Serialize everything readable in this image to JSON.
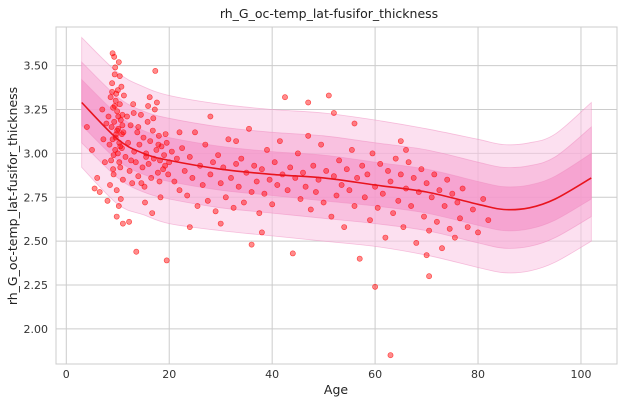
{
  "chart_data": {
    "type": "scatter",
    "title": "rh_G_oc-temp_lat-fusifor_thickness",
    "xlabel": "Age",
    "ylabel": "rh_G_oc-temp_lat-fusifor_thickness",
    "xlim": [
      -2,
      107
    ],
    "ylim": [
      1.8,
      3.72
    ],
    "x_ticks": [
      0,
      20,
      40,
      60,
      80,
      100
    ],
    "y_ticks": [
      2.0,
      2.25,
      2.5,
      2.75,
      3.0,
      3.25,
      3.5
    ],
    "x_tick_labels": [
      "0",
      "20",
      "40",
      "60",
      "80",
      "100"
    ],
    "y_tick_labels": [
      "2.00",
      "2.25",
      "2.50",
      "2.75",
      "3.00",
      "3.25",
      "3.50"
    ],
    "grid": true,
    "colors": {
      "points": "#ff0000",
      "trend": "#e8141e",
      "bands": [
        "#f9c6e3",
        "#f6a8d3",
        "#f48cc5"
      ],
      "grid": "#cccccc",
      "frame": "#cccccc"
    },
    "trend": {
      "x": [
        3,
        10,
        15,
        20,
        30,
        40,
        50,
        60,
        70,
        80,
        85,
        90,
        95,
        102
      ],
      "y": [
        3.29,
        3.08,
        3.0,
        2.96,
        2.91,
        2.88,
        2.86,
        2.82,
        2.78,
        2.71,
        2.68,
        2.69,
        2.74,
        2.86
      ]
    },
    "bands": [
      {
        "quantiles": [
          5,
          95
        ],
        "lower": [
          2.92,
          2.71,
          2.65,
          2.6,
          2.56,
          2.53,
          2.5,
          2.47,
          2.42,
          2.35,
          2.32,
          2.33,
          2.38,
          2.5
        ],
        "upper": [
          3.66,
          3.46,
          3.38,
          3.33,
          3.28,
          3.25,
          3.23,
          3.19,
          3.14,
          3.08,
          3.05,
          3.06,
          3.11,
          3.29
        ]
      },
      {
        "quantiles": [
          15,
          85
        ],
        "lower": [
          3.06,
          2.86,
          2.78,
          2.74,
          2.69,
          2.66,
          2.63,
          2.6,
          2.56,
          2.49,
          2.46,
          2.47,
          2.52,
          2.64
        ],
        "upper": [
          3.52,
          3.32,
          3.24,
          3.2,
          3.15,
          3.12,
          3.1,
          3.06,
          3.02,
          2.95,
          2.92,
          2.93,
          2.98,
          3.15
        ]
      },
      {
        "quantiles": [
          25,
          75
        ],
        "lower": [
          3.16,
          2.96,
          2.88,
          2.84,
          2.79,
          2.76,
          2.73,
          2.7,
          2.66,
          2.59,
          2.56,
          2.57,
          2.62,
          2.74
        ],
        "upper": [
          3.42,
          3.22,
          3.13,
          3.09,
          3.04,
          3.01,
          2.99,
          2.95,
          2.91,
          2.84,
          2.81,
          2.82,
          2.87,
          3.0
        ]
      }
    ],
    "points": [
      [
        8.2,
        3.21
      ],
      [
        8.4,
        3.05
      ],
      [
        8.6,
        3.32
      ],
      [
        8.7,
        2.96
      ],
      [
        8.8,
        3.15
      ],
      [
        8.9,
        3.4
      ],
      [
        9.0,
        3.08
      ],
      [
        9.1,
        3.26
      ],
      [
        9.2,
        2.88
      ],
      [
        9.3,
        3.18
      ],
      [
        9.4,
        3.45
      ],
      [
        9.5,
        3.02
      ],
      [
        9.6,
        3.3
      ],
      [
        9.7,
        3.11
      ],
      [
        9.8,
        2.79
      ],
      [
        9.9,
        3.24
      ],
      [
        10.0,
        3.36
      ],
      [
        10.0,
        3.0
      ],
      [
        10.1,
        3.14
      ],
      [
        10.2,
        3.52
      ],
      [
        10.3,
        3.06
      ],
      [
        10.4,
        3.28
      ],
      [
        10.5,
        2.92
      ],
      [
        10.6,
        3.19
      ],
      [
        10.7,
        3.38
      ],
      [
        10.8,
        3.03
      ],
      [
        10.9,
        3.22
      ],
      [
        11.0,
        2.85
      ],
      [
        11.1,
        3.12
      ],
      [
        11.2,
        3.33
      ],
      [
        9.0,
        3.57
      ],
      [
        9.5,
        3.49
      ],
      [
        10.2,
        2.7
      ],
      [
        9.8,
        2.64
      ],
      [
        10.6,
        2.74
      ],
      [
        8.5,
        2.82
      ],
      [
        9.3,
        3.55
      ],
      [
        10.4,
        3.44
      ],
      [
        8.9,
        3.35
      ],
      [
        9.9,
        3.13
      ],
      [
        7.2,
        3.08
      ],
      [
        7.5,
        2.95
      ],
      [
        7.8,
        3.17
      ],
      [
        6.0,
        2.86
      ],
      [
        5.0,
        3.02
      ],
      [
        4.0,
        3.15
      ],
      [
        6.5,
        2.78
      ],
      [
        7.0,
        3.25
      ],
      [
        5.5,
        2.8
      ],
      [
        8.0,
        2.73
      ],
      [
        11.5,
        2.98
      ],
      [
        11.8,
        3.21
      ],
      [
        12.0,
        3.06
      ],
      [
        12.3,
        2.9
      ],
      [
        12.5,
        3.16
      ],
      [
        12.8,
        2.83
      ],
      [
        13.0,
        3.28
      ],
      [
        13.2,
        3.01
      ],
      [
        13.5,
        2.95
      ],
      [
        13.8,
        3.12
      ],
      [
        14.0,
        2.87
      ],
      [
        14.2,
        3.05
      ],
      [
        14.5,
        3.22
      ],
      [
        14.8,
        2.92
      ],
      [
        15.0,
        3.09
      ],
      [
        15.2,
        2.81
      ],
      [
        15.5,
        3.0
      ],
      [
        15.8,
        3.18
      ],
      [
        16.0,
        2.94
      ],
      [
        16.3,
        3.07
      ],
      [
        16.5,
        2.86
      ],
      [
        16.8,
        3.13
      ],
      [
        17.0,
        2.97
      ],
      [
        17.2,
        3.25
      ],
      [
        17.5,
        3.02
      ],
      [
        17.8,
        2.89
      ],
      [
        18.0,
        3.1
      ],
      [
        18.2,
        2.96
      ],
      [
        18.5,
        3.04
      ],
      [
        18.8,
        2.91
      ],
      [
        17.3,
        3.47
      ],
      [
        16.2,
        3.32
      ],
      [
        17.6,
        3.29
      ],
      [
        15.3,
        2.72
      ],
      [
        16.7,
        2.66
      ],
      [
        18.3,
        2.75
      ],
      [
        13.6,
        2.44
      ],
      [
        19.5,
        2.39
      ],
      [
        12.2,
        2.61
      ],
      [
        11.0,
        2.6
      ],
      [
        19.0,
        2.99
      ],
      [
        19.2,
        2.93
      ],
      [
        19.5,
        3.06
      ],
      [
        19.8,
        2.88
      ],
      [
        20.0,
        2.95
      ],
      [
        20.5,
        3.01
      ],
      [
        21.0,
        2.84
      ],
      [
        21.5,
        2.97
      ],
      [
        22.0,
        2.79
      ],
      [
        22.5,
        3.03
      ],
      [
        23.0,
        2.9
      ],
      [
        23.5,
        2.76
      ],
      [
        24.0,
        2.98
      ],
      [
        24.5,
        2.86
      ],
      [
        25.0,
        3.12
      ],
      [
        25.5,
        2.7
      ],
      [
        26.0,
        2.93
      ],
      [
        26.5,
        2.82
      ],
      [
        27.0,
        3.05
      ],
      [
        27.5,
        2.73
      ],
      [
        28.0,
        2.88
      ],
      [
        28.5,
        2.95
      ],
      [
        29.0,
        2.67
      ],
      [
        29.5,
        2.99
      ],
      [
        30.0,
        2.83
      ],
      [
        30.5,
        2.92
      ],
      [
        31.0,
        2.75
      ],
      [
        31.5,
        3.08
      ],
      [
        32.0,
        2.86
      ],
      [
        32.5,
        2.69
      ],
      [
        33.0,
        2.94
      ],
      [
        33.5,
        2.81
      ],
      [
        34.0,
        2.97
      ],
      [
        34.5,
        2.72
      ],
      [
        35.0,
        2.89
      ],
      [
        35.5,
        3.14
      ],
      [
        36.0,
        2.78
      ],
      [
        36.5,
        2.93
      ],
      [
        37.0,
        2.84
      ],
      [
        37.5,
        2.66
      ],
      [
        38.0,
        2.91
      ],
      [
        38.5,
        2.77
      ],
      [
        39.0,
        3.02
      ],
      [
        39.5,
        2.85
      ],
      [
        40.0,
        2.71
      ],
      [
        40.5,
        2.95
      ],
      [
        41.0,
        2.82
      ],
      [
        41.5,
        3.07
      ],
      [
        42.0,
        2.88
      ],
      [
        42.5,
        3.32
      ],
      [
        43.0,
        2.79
      ],
      [
        43.5,
        2.92
      ],
      [
        44.0,
        2.43
      ],
      [
        44.5,
        2.86
      ],
      [
        45.0,
        3.0
      ],
      [
        45.5,
        2.74
      ],
      [
        46.0,
        2.89
      ],
      [
        46.5,
        2.81
      ],
      [
        47.0,
        3.1
      ],
      [
        47.5,
        2.68
      ],
      [
        48.0,
        2.93
      ],
      [
        48.5,
        2.78
      ],
      [
        49.0,
        2.85
      ],
      [
        49.5,
        3.05
      ],
      [
        50.0,
        2.72
      ],
      [
        50.5,
        2.9
      ],
      [
        51.0,
        3.33
      ],
      [
        51.5,
        2.64
      ],
      [
        52.0,
        2.87
      ],
      [
        52.5,
        2.76
      ],
      [
        53.0,
        2.96
      ],
      [
        53.5,
        2.82
      ],
      [
        54.0,
        2.58
      ],
      [
        54.5,
        2.91
      ],
      [
        55.0,
        2.79
      ],
      [
        55.5,
        3.02
      ],
      [
        56.0,
        2.7
      ],
      [
        56.5,
        2.86
      ],
      [
        57.0,
        2.4
      ],
      [
        57.5,
        2.93
      ],
      [
        58.0,
        2.75
      ],
      [
        58.5,
        2.88
      ],
      [
        59.0,
        2.62
      ],
      [
        59.5,
        3.0
      ],
      [
        60.0,
        2.81
      ],
      [
        60.5,
        2.69
      ],
      [
        61.0,
        2.94
      ],
      [
        61.5,
        2.77
      ],
      [
        62.0,
        2.52
      ],
      [
        62.5,
        2.9
      ],
      [
        63.0,
        2.84
      ],
      [
        63.5,
        2.66
      ],
      [
        64.0,
        2.97
      ],
      [
        64.5,
        2.73
      ],
      [
        65.0,
        2.88
      ],
      [
        65.5,
        2.58
      ],
      [
        66.0,
        2.8
      ],
      [
        66.5,
        2.95
      ],
      [
        67.0,
        2.7
      ],
      [
        67.5,
        2.86
      ],
      [
        68.0,
        2.49
      ],
      [
        68.5,
        2.78
      ],
      [
        69.0,
        2.91
      ],
      [
        69.5,
        2.64
      ],
      [
        70.0,
        2.83
      ],
      [
        70.5,
        2.56
      ],
      [
        71.0,
        2.75
      ],
      [
        71.5,
        2.88
      ],
      [
        72.0,
        2.61
      ],
      [
        72.5,
        2.79
      ],
      [
        73.0,
        2.46
      ],
      [
        73.5,
        2.7
      ],
      [
        74.0,
        2.85
      ],
      [
        74.5,
        2.57
      ],
      [
        75.0,
        2.77
      ],
      [
        75.5,
        2.52
      ],
      [
        76.0,
        2.72
      ],
      [
        76.5,
        2.63
      ],
      [
        77.0,
        2.8
      ],
      [
        78.0,
        2.58
      ],
      [
        79.0,
        2.68
      ],
      [
        80.0,
        2.55
      ],
      [
        81.0,
        2.74
      ],
      [
        82.0,
        2.62
      ],
      [
        60.0,
        2.24
      ],
      [
        63.0,
        1.85
      ],
      [
        70.5,
        2.3
      ],
      [
        47.0,
        3.29
      ],
      [
        52.0,
        3.23
      ],
      [
        33.0,
        3.07
      ],
      [
        28.0,
        3.21
      ],
      [
        22.0,
        3.12
      ],
      [
        65.0,
        3.07
      ],
      [
        66.0,
        3.02
      ],
      [
        56.0,
        3.17
      ],
      [
        36.0,
        2.48
      ],
      [
        24.0,
        2.58
      ],
      [
        30.0,
        2.6
      ],
      [
        38.0,
        2.55
      ],
      [
        70.0,
        2.42
      ],
      [
        9.2,
        2.99
      ],
      [
        9.6,
        3.09
      ],
      [
        10.1,
        3.21
      ],
      [
        10.5,
        3.04
      ],
      [
        10.9,
        3.16
      ],
      [
        9.4,
        3.27
      ],
      [
        10.3,
        2.95
      ],
      [
        9.7,
        3.34
      ],
      [
        10.8,
        3.11
      ],
      [
        9.1,
        2.91
      ],
      [
        14.0,
        3.15
      ],
      [
        15.5,
        2.98
      ],
      [
        16.9,
        3.2
      ],
      [
        18.1,
        2.84
      ],
      [
        19.3,
        3.11
      ],
      [
        13.1,
        3.23
      ],
      [
        12.6,
        2.96
      ],
      [
        17.9,
        3.05
      ],
      [
        15.9,
        3.27
      ],
      [
        14.6,
        2.83
      ]
    ]
  }
}
